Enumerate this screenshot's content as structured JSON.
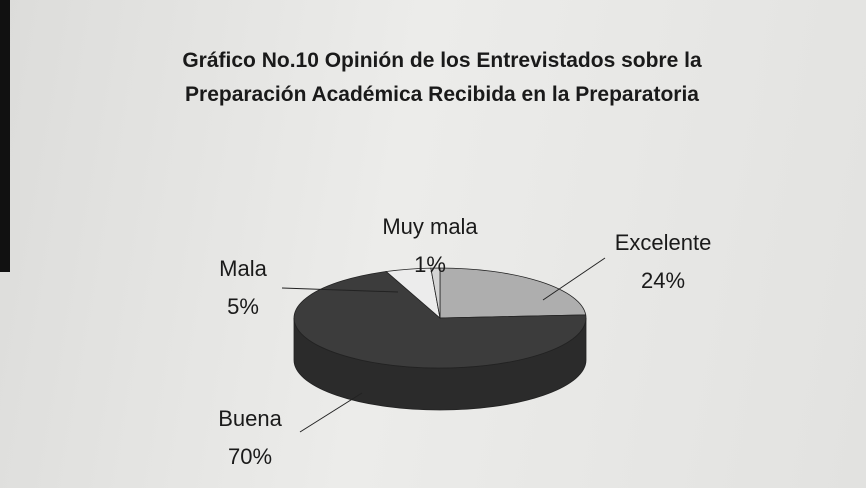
{
  "chart_data": {
    "type": "pie",
    "title": "Gráfico No.10 Opinión de los Entrevistados sobre la Preparación Académica Recibida en la Preparatoria",
    "categories": [
      "Excelente",
      "Buena",
      "Mala",
      "Muy mala"
    ],
    "values": [
      24,
      70,
      5,
      1
    ],
    "value_labels": [
      "24%",
      "70%",
      "5%",
      "1%"
    ],
    "colors": [
      "#aeaeae",
      "#3c3c3c",
      "#ececec",
      "#d4d4d4"
    ]
  }
}
